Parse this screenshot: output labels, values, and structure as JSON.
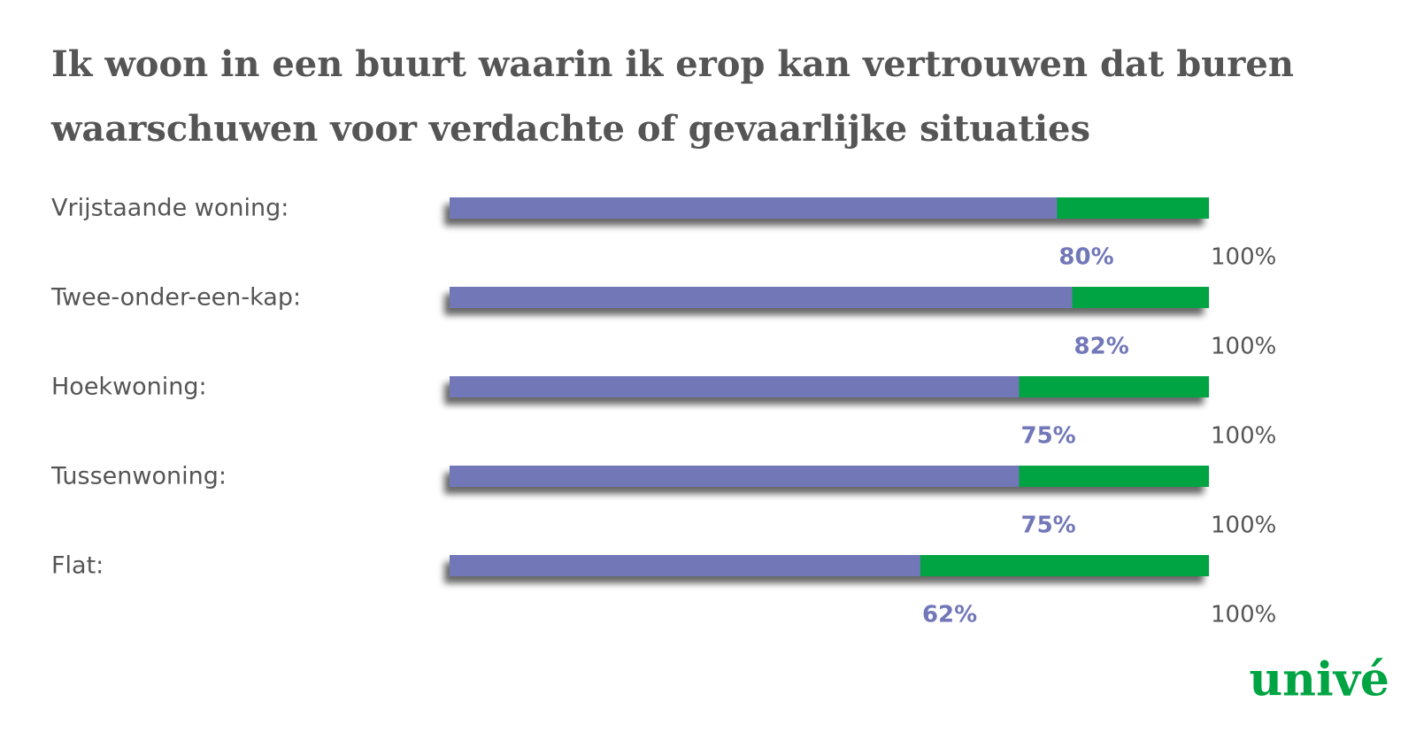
{
  "chart_data": {
    "type": "bar",
    "title": [
      "Ik woon in een buurt waarin ik erop kan vertrouwen dat buren",
      "waarschuwen voor verdachte of gevaarlijke situaties"
    ],
    "categories": [
      "Vrijstaande woning:",
      "Twee-onder-een-kap:",
      "Hoekwoning:",
      "Tussenwoning:",
      "Flat:"
    ],
    "series": [
      {
        "color": "#00a443",
        "values": [
          100,
          100,
          100,
          100,
          100
        ],
        "value_labels": [
          "100%",
          "100%",
          "100%",
          "100%",
          "100%"
        ]
      },
      {
        "color": "#7277b8",
        "values": [
          80,
          82,
          75,
          75,
          62
        ],
        "value_labels": [
          "80%",
          "82%",
          "75%",
          "75%",
          "62%"
        ]
      }
    ],
    "xlim": [
      0,
      100
    ],
    "logo": "univé"
  }
}
